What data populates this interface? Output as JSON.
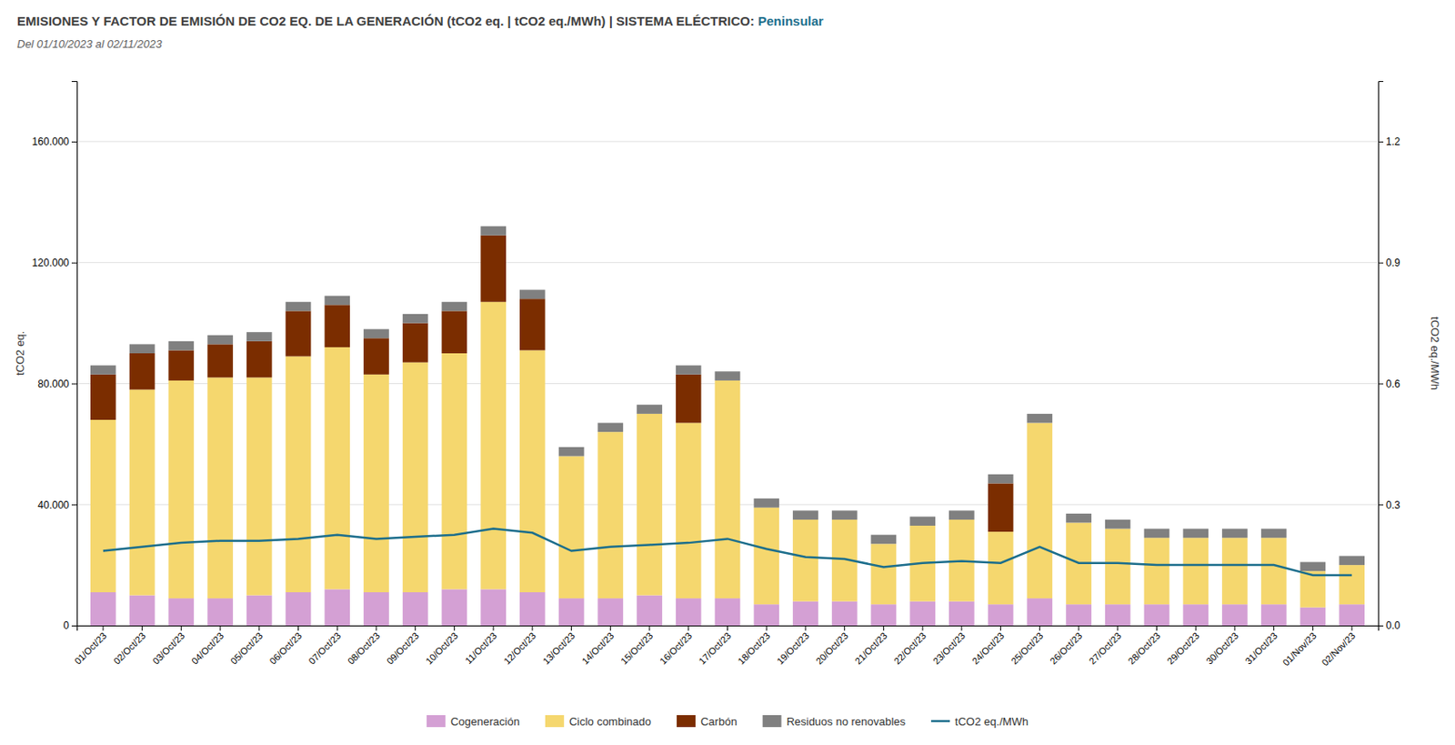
{
  "chart_data": {
    "type": "bar",
    "stacked": true,
    "grid": true,
    "legend": "bottom",
    "title": "EMISIONES Y FACTOR DE EMISIÓN DE CO2 EQ. DE LA GENERACIÓN (tCO2 eq. | tCO2 eq./MWh) | SISTEMA ELÉCTRICO: ",
    "title_highlight": {
      "text": "Peninsular",
      "color": "#1C6E8C"
    },
    "subtitle": "Del 01/10/2023 al 02/11/2023",
    "ylabel": "tCO2 eq.",
    "y2label": "tCO2 eq./MWh",
    "categories": [
      "01/Oct/23",
      "02/Oct/23",
      "03/Oct/23",
      "04/Oct/23",
      "05/Oct/23",
      "06/Oct/23",
      "07/Oct/23",
      "08/Oct/23",
      "09/Oct/23",
      "10/Oct/23",
      "11/Oct/23",
      "12/Oct/23",
      "13/Oct/23",
      "14/Oct/23",
      "15/Oct/23",
      "16/Oct/23",
      "17/Oct/23",
      "18/Oct/23",
      "19/Oct/23",
      "20/Oct/23",
      "21/Oct/23",
      "22/Oct/23",
      "23/Oct/23",
      "24/Oct/23",
      "25/Oct/23",
      "26/Oct/23",
      "27/Oct/23",
      "28/Oct/23",
      "29/Oct/23",
      "30/Oct/23",
      "31/Oct/23",
      "01/Nov/23",
      "02/Nov/23"
    ],
    "series": [
      {
        "name": "Cogeneración",
        "color": "#D4A0D4",
        "values": [
          11000,
          10000,
          9000,
          9000,
          10000,
          11000,
          12000,
          11000,
          11000,
          12000,
          12000,
          11000,
          9000,
          9000,
          10000,
          9000,
          9000,
          7000,
          8000,
          8000,
          7000,
          8000,
          8000,
          7000,
          9000,
          7000,
          7000,
          7000,
          7000,
          7000,
          7000,
          6000,
          7000
        ]
      },
      {
        "name": "Ciclo combinado",
        "color": "#F5D76E",
        "values": [
          57000,
          68000,
          72000,
          73000,
          72000,
          78000,
          80000,
          72000,
          76000,
          78000,
          95000,
          80000,
          47000,
          55000,
          60000,
          58000,
          72000,
          32000,
          27000,
          27000,
          20000,
          25000,
          27000,
          24000,
          58000,
          27000,
          25000,
          22000,
          22000,
          22000,
          22000,
          12000,
          13000
        ]
      },
      {
        "name": "Carbón",
        "color": "#7B2D00",
        "values": [
          15000,
          12000,
          10000,
          11000,
          12000,
          15000,
          14000,
          12000,
          13000,
          14000,
          22000,
          17000,
          0,
          0,
          0,
          16000,
          0,
          0,
          0,
          0,
          0,
          0,
          0,
          16000,
          0,
          0,
          0,
          0,
          0,
          0,
          0,
          0,
          0
        ]
      },
      {
        "name": "Residuos no renovables",
        "color": "#808080",
        "values": [
          3000,
          3000,
          3000,
          3000,
          3000,
          3000,
          3000,
          3000,
          3000,
          3000,
          3000,
          3000,
          3000,
          3000,
          3000,
          3000,
          3000,
          3000,
          3000,
          3000,
          3000,
          3000,
          3000,
          3000,
          3000,
          3000,
          3000,
          3000,
          3000,
          3000,
          3000,
          3000,
          3000
        ]
      },
      {
        "name": "tCO2 eq./MWh",
        "type": "line",
        "axis": "y2",
        "color": "#1C6E8C",
        "values": [
          0.185,
          0.195,
          0.205,
          0.21,
          0.21,
          0.215,
          0.225,
          0.215,
          0.22,
          0.225,
          0.24,
          0.23,
          0.185,
          0.195,
          0.2,
          0.205,
          0.215,
          0.19,
          0.17,
          0.165,
          0.145,
          0.155,
          0.16,
          0.155,
          0.195,
          0.155,
          0.155,
          0.15,
          0.15,
          0.15,
          0.15,
          0.125,
          0.125
        ]
      }
    ],
    "ylim": [
      0,
      180000
    ],
    "yticks": [
      0,
      {
        "value": 40000,
        "label": "40.000"
      },
      {
        "value": 80000,
        "label": "80.000"
      },
      {
        "value": 120000,
        "label": "120.000"
      },
      {
        "value": 160000,
        "label": "160.000"
      }
    ],
    "y2lim": [
      0,
      1.35
    ],
    "y2ticks": [
      {
        "value": 0,
        "label": "0.0"
      },
      0.3,
      0.6,
      0.9,
      1.2
    ]
  }
}
